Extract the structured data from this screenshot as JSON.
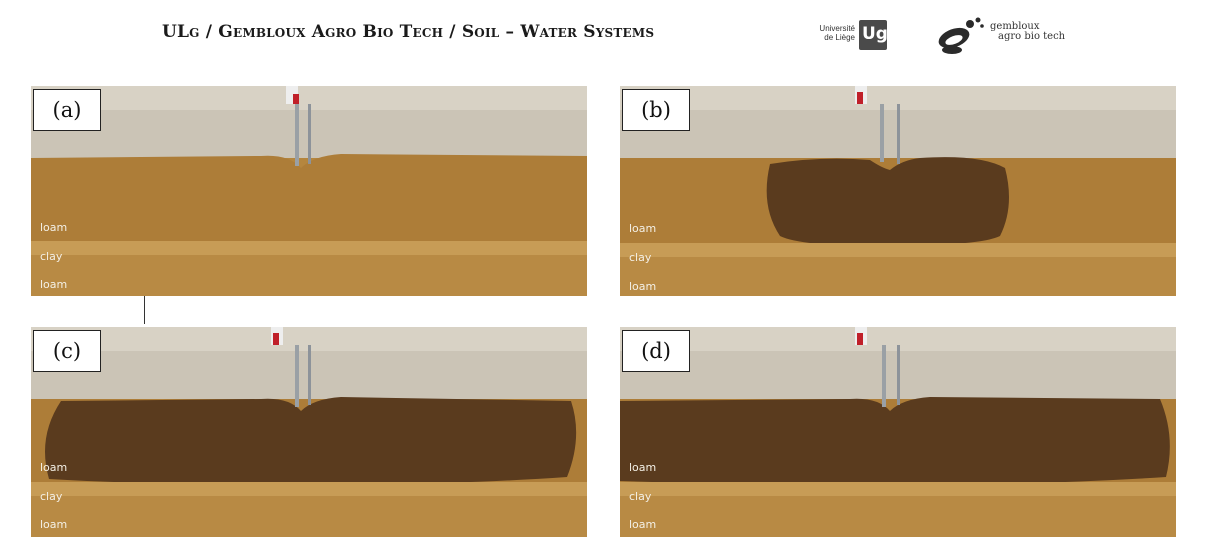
{
  "header": {
    "title": "ULg  /  Gembloux Agro Bio Tech  /  Soil – Water Systems",
    "ulg_logo_text_line1": "Université",
    "ulg_logo_text_line2": "de Liège",
    "ulg_logo_mark": "Ug",
    "gembloux_logo_line1": "gembloux",
    "gembloux_logo_line2": "agro bio tech"
  },
  "panels": [
    {
      "tag": "(a)",
      "layers": [
        "loam",
        "clay",
        "loam"
      ]
    },
    {
      "tag": "(b)",
      "layers": [
        "loam",
        "clay",
        "loam"
      ]
    },
    {
      "tag": "(c)",
      "layers": [
        "loam",
        "clay",
        "loam"
      ]
    },
    {
      "tag": "(d)",
      "layers": [
        "loam",
        "clay",
        "loam"
      ]
    }
  ],
  "colors": {
    "soil_dry": "#b5863e",
    "soil_dark": "#a57434",
    "wet_front": "#5a3b1e",
    "wall": "#d9d3c7",
    "clay_band": "#c39a55"
  }
}
